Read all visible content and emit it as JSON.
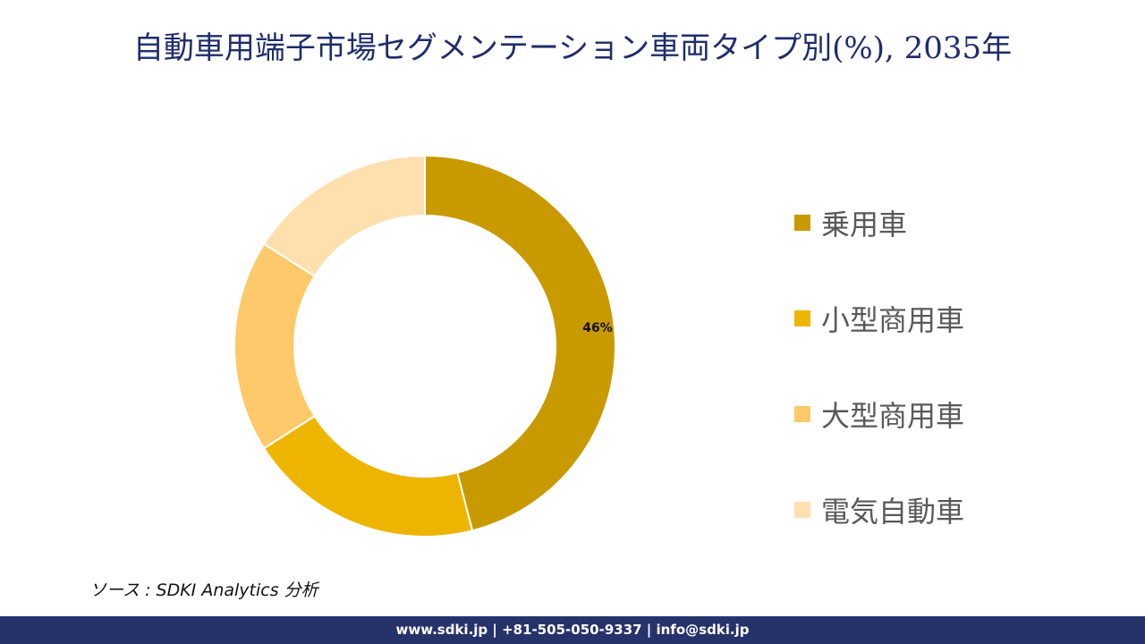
{
  "title": "自動車用端子市場セグメンテーション車両タイプ別(%), 2035年",
  "chart_data": {
    "type": "pie",
    "subtype": "donut",
    "title": "自動車用端子市場セグメンテーション車両タイプ別(%), 2035年",
    "categories": [
      "乗用車",
      "小型商用車",
      "大型商用車",
      "電気自動車"
    ],
    "values": [
      46,
      20,
      18,
      16
    ],
    "colors": [
      "#c89a00",
      "#eeb500",
      "#fdc96a",
      "#fde0ae"
    ],
    "data_labels": [
      "46%",
      "",
      "",
      ""
    ],
    "legend_position": "right",
    "start_angle_deg": 0,
    "direction": "clockwise"
  },
  "legend": {
    "items": [
      {
        "label": "乗用車",
        "color": "#c89a00"
      },
      {
        "label": "小型商用車",
        "color": "#eeb500"
      },
      {
        "label": "大型商用車",
        "color": "#fdc96a"
      },
      {
        "label": "電気自動車",
        "color": "#fde0ae"
      }
    ]
  },
  "source": "ソース : SDKI Analytics  分析",
  "footer": "www.sdki.jp | +81-505-050-9337 | info@sdki.jp"
}
